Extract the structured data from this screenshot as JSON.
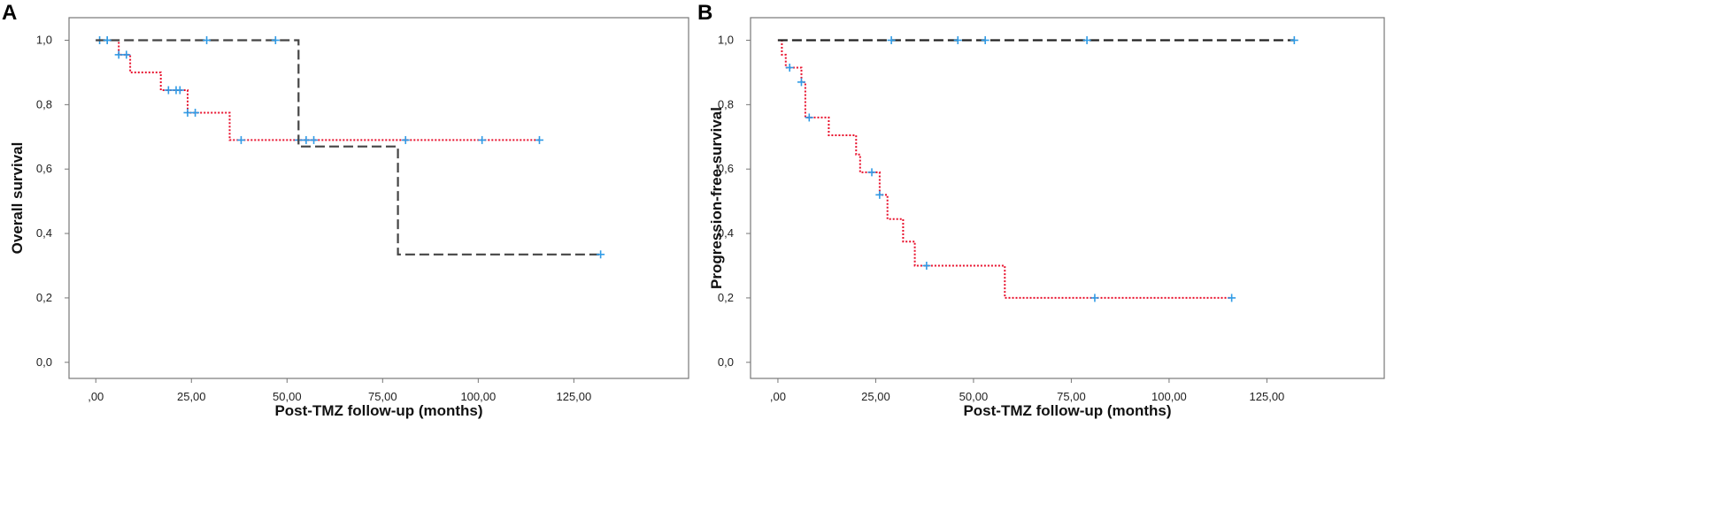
{
  "chart_data": [
    {
      "panel": "A",
      "type": "line",
      "subtype": "kaplan-meier",
      "xlabel": "Post-TMZ follow-up (months)",
      "ylabel": "Overall survival",
      "xlim": [
        -7,
        155
      ],
      "ylim": [
        -0.05,
        1.07
      ],
      "xticks": [
        0,
        25,
        50,
        75,
        100,
        125
      ],
      "xtick_labels": [
        ",00",
        "25,00",
        "50,00",
        "75,00",
        "100,00",
        "125,00"
      ],
      "yticks": [
        0,
        0.2,
        0.4,
        0.6,
        0.8,
        1.0
      ],
      "ytick_labels": [
        "0,0",
        "0,2",
        "0,4",
        "0,6",
        "0,8",
        "1,0"
      ],
      "series": [
        {
          "name": "red dotted group",
          "style": "dotted",
          "color": "#e8112d",
          "steps": [
            [
              0,
              1.0
            ],
            [
              6,
              0.955
            ],
            [
              9,
              0.9
            ],
            [
              17,
              0.845
            ],
            [
              24,
              0.775
            ],
            [
              35,
              0.69
            ],
            [
              116,
              0.69
            ]
          ],
          "censored": [
            [
              1,
              1.0
            ],
            [
              3,
              1.0
            ],
            [
              6,
              0.955
            ],
            [
              8,
              0.955
            ],
            [
              19,
              0.845
            ],
            [
              21,
              0.845
            ],
            [
              22,
              0.845
            ],
            [
              24,
              0.775
            ],
            [
              26,
              0.775
            ],
            [
              38,
              0.69
            ],
            [
              53,
              0.69
            ],
            [
              55,
              0.69
            ],
            [
              57,
              0.69
            ],
            [
              81,
              0.69
            ],
            [
              101,
              0.69
            ],
            [
              116,
              0.69
            ]
          ]
        },
        {
          "name": "black dashed group",
          "style": "dashed",
          "color": "#444444",
          "steps": [
            [
              0,
              1.0
            ],
            [
              53,
              0.67
            ],
            [
              79,
              0.335
            ],
            [
              132,
              0.335
            ]
          ],
          "censored": [
            [
              3,
              1.0
            ],
            [
              29,
              1.0
            ],
            [
              47,
              1.0
            ],
            [
              132,
              0.335
            ]
          ]
        }
      ],
      "censor_color": "#2f9be6"
    },
    {
      "panel": "B",
      "type": "line",
      "subtype": "kaplan-meier",
      "xlabel": "Post-TMZ follow-up (months)",
      "ylabel": "Progression-free-survival",
      "xlim": [
        -7,
        155
      ],
      "ylim": [
        -0.05,
        1.07
      ],
      "xticks": [
        0,
        25,
        50,
        75,
        100,
        125
      ],
      "xtick_labels": [
        ",00",
        "25,00",
        "50,00",
        "75,00",
        "100,00",
        "125,00"
      ],
      "yticks": [
        0,
        0.2,
        0.4,
        0.6,
        0.8,
        1.0
      ],
      "ytick_labels": [
        "0,0",
        "0,2",
        "0,4",
        "0,6",
        "0,8",
        "1,0"
      ],
      "series": [
        {
          "name": "red dotted group",
          "style": "dotted",
          "color": "#e8112d",
          "steps": [
            [
              0,
              1.0
            ],
            [
              1,
              0.955
            ],
            [
              2,
              0.915
            ],
            [
              6,
              0.87
            ],
            [
              7,
              0.76
            ],
            [
              13,
              0.705
            ],
            [
              20,
              0.645
            ],
            [
              21,
              0.59
            ],
            [
              26,
              0.52
            ],
            [
              28,
              0.445
            ],
            [
              32,
              0.375
            ],
            [
              35,
              0.3
            ],
            [
              58,
              0.2
            ],
            [
              116,
              0.2
            ]
          ],
          "censored": [
            [
              3,
              0.915
            ],
            [
              6,
              0.87
            ],
            [
              8,
              0.76
            ],
            [
              24,
              0.59
            ],
            [
              26,
              0.52
            ],
            [
              38,
              0.3
            ],
            [
              81,
              0.2
            ],
            [
              116,
              0.2
            ]
          ]
        },
        {
          "name": "black dashed group",
          "style": "dashed",
          "color": "#222222",
          "steps": [
            [
              0,
              1.0
            ],
            [
              132,
              1.0
            ]
          ],
          "censored": [
            [
              29,
              1.0
            ],
            [
              46,
              1.0
            ],
            [
              53,
              1.0
            ],
            [
              79,
              1.0
            ],
            [
              132,
              1.0
            ]
          ]
        }
      ],
      "censor_color": "#2f9be6"
    }
  ]
}
